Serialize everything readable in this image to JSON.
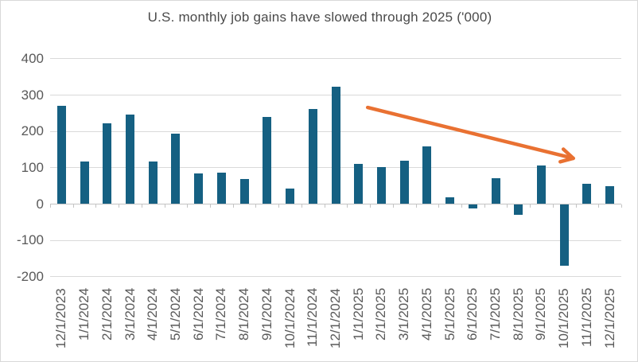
{
  "chart_data": {
    "type": "bar",
    "title": "U.S. monthly job gains have slowed through 2025 ('000)",
    "xlabel": "",
    "ylabel": "",
    "categories": [
      "12/1/2023",
      "1/1/2024",
      "2/1/2024",
      "3/1/2024",
      "4/1/2024",
      "5/1/2024",
      "6/1/2024",
      "7/1/2024",
      "8/1/2024",
      "9/1/2024",
      "10/1/2024",
      "11/1/2024",
      "12/1/2024",
      "1/1/2025",
      "2/1/2025",
      "3/1/2025",
      "4/1/2025",
      "5/1/2025",
      "6/1/2025",
      "7/1/2025",
      "8/1/2025",
      "9/1/2025",
      "10/1/2025",
      "11/1/2025",
      "12/1/2025"
    ],
    "values": [
      270,
      118,
      223,
      246,
      118,
      193,
      85,
      87,
      70,
      240,
      42,
      261,
      323,
      111,
      102,
      120,
      158,
      18,
      -13,
      72,
      -30,
      107,
      -170,
      56,
      50
    ],
    "ylim": [
      -200,
      400
    ],
    "yticks": [
      400,
      300,
      200,
      100,
      0,
      -100,
      -200
    ],
    "grid": true,
    "legend": false,
    "bar_color": "#156082",
    "annotation": {
      "type": "arrow",
      "color": "#E97132",
      "from_index": 13.4,
      "from_value": 266,
      "to_index": 22.4,
      "to_value": 126
    },
    "colors": {
      "grid": "#d9d9d9",
      "axis": "#c4c4c4",
      "tick_text": "#595959",
      "title_text": "#4a4a4a",
      "background": "#ffffff",
      "border": "#d9d9d9"
    }
  }
}
